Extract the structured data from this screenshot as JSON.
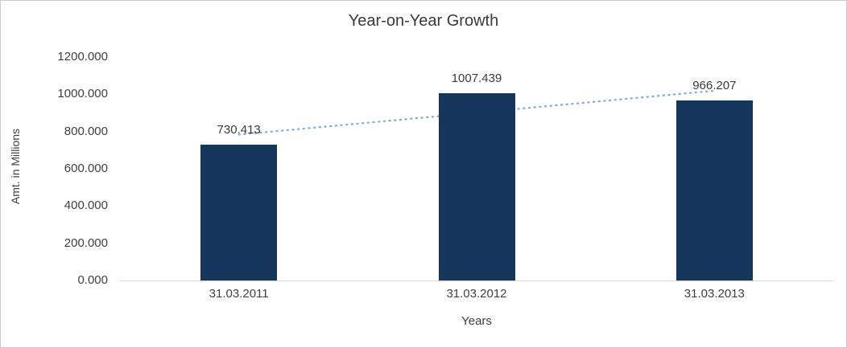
{
  "chart_data": {
    "type": "bar",
    "title": "Year-on-Year Growth",
    "xlabel": "Years",
    "ylabel": "Amt. in Millions",
    "categories": [
      "31.03.2011",
      "31.03.2012",
      "31.03.2013"
    ],
    "values": [
      730.413,
      1007.439,
      966.207
    ],
    "value_labels": [
      "730.413",
      "1007.439",
      "966.207"
    ],
    "ylim": [
      0,
      1200
    ],
    "ytick_labels": [
      "0.000",
      "200.000",
      "400.000",
      "600.000",
      "800.000",
      "1000.000",
      "1200.000"
    ],
    "grid": false,
    "legend_position": "none",
    "bar_color": "#16365C",
    "trendline": {
      "type": "linear",
      "style": "dotted",
      "color": "#7FA8D8"
    },
    "text_color": "#3f3f3f",
    "axis_line_color": "#d6d6d6"
  }
}
